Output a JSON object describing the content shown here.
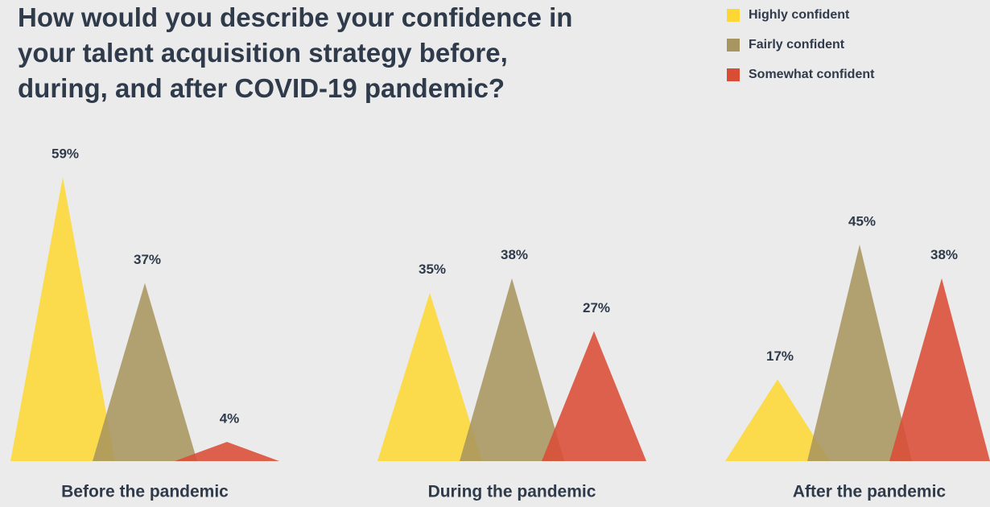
{
  "chart_data": {
    "type": "triangle-bar",
    "title": "How would you describe your confidence in your talent acquisition strategy before, during, and after COVID-19 pandemic?",
    "categories": [
      "Before the pandemic",
      "During the pandemic",
      "After the pandemic"
    ],
    "series": [
      {
        "name": "Highly confident",
        "color": "#fdd835",
        "values": [
          59,
          35,
          17
        ],
        "value_labels": [
          "59%",
          "35%",
          "17%"
        ]
      },
      {
        "name": "Fairly confident",
        "color": "#a8955f",
        "values": [
          37,
          38,
          45
        ],
        "value_labels": [
          "37%",
          "38%",
          "45%"
        ]
      },
      {
        "name": "Somewhat confident",
        "color": "#d94c35",
        "values": [
          4,
          27,
          38
        ],
        "value_labels": [
          "4%",
          "27%",
          "38%"
        ]
      }
    ]
  }
}
